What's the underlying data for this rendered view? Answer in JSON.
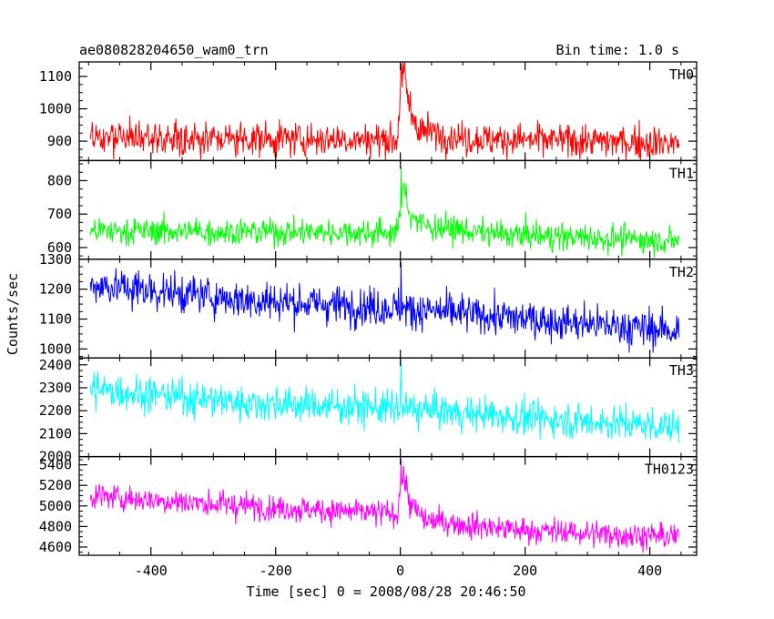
{
  "header": {
    "title": "ae080828204650_wam0_trn",
    "bin_time": "Bin time: 1.0 s"
  },
  "chart_data": {
    "type": "line",
    "title": "ae080828204650_wam0_trn",
    "xlabel": "Time [sec] 0 = 2008/08/28 20:46:50",
    "ylabel": "Counts/sec",
    "xlim": [
      -515,
      475
    ],
    "x_ticks": [
      -400,
      -200,
      0,
      200,
      400
    ],
    "x_start": -497,
    "x_end": 447,
    "bin_sec": 1.0,
    "grid": false,
    "series": [
      {
        "name": "TH0",
        "color": "#ff0000",
        "ylim": [
          840,
          1145
        ],
        "yticks": [
          900,
          1000,
          1100
        ],
        "trend": [
          [
            -497,
            910
          ],
          [
            -5,
            905
          ],
          [
            0,
            1060
          ],
          [
            6,
            1110
          ],
          [
            15,
            1000
          ],
          [
            30,
            935
          ],
          [
            100,
            908
          ],
          [
            447,
            895
          ]
        ],
        "noise": 45,
        "peak_max": 1140
      },
      {
        "name": "TH1",
        "color": "#00ff00",
        "ylim": [
          565,
          860
        ],
        "yticks": [
          600,
          700,
          800
        ],
        "trend": [
          [
            -497,
            650
          ],
          [
            -5,
            645
          ],
          [
            3,
            740
          ],
          [
            6,
            790
          ],
          [
            15,
            700
          ],
          [
            40,
            665
          ],
          [
            150,
            640
          ],
          [
            447,
            620
          ]
        ],
        "noise": 35,
        "peak_max": 840
      },
      {
        "name": "TH2",
        "color": "#0000ff",
        "ylim": [
          970,
          1300
        ],
        "yticks": [
          1000,
          1100,
          1200,
          1300
        ],
        "trend": [
          [
            -497,
            1215
          ],
          [
            -250,
            1165
          ],
          [
            0,
            1135
          ],
          [
            200,
            1100
          ],
          [
            447,
            1060
          ]
        ],
        "noise": 55,
        "peak_max": 1290
      },
      {
        "name": "TH3",
        "color": "#00ffff",
        "ylim": [
          2000,
          2430
        ],
        "yticks": [
          2000,
          2100,
          2200,
          2300,
          2400
        ],
        "trend": [
          [
            -497,
            2295
          ],
          [
            -250,
            2235
          ],
          [
            0,
            2210
          ],
          [
            200,
            2170
          ],
          [
            447,
            2130
          ]
        ],
        "noise": 65,
        "peak_max": 2425
      },
      {
        "name": "TH0123",
        "color": "#ff00ff",
        "ylim": [
          4520,
          5480
        ],
        "yticks": [
          4600,
          4800,
          5000,
          5200,
          5400
        ],
        "trend": [
          [
            -497,
            5100
          ],
          [
            -250,
            5000
          ],
          [
            -5,
            4920
          ],
          [
            0,
            5200
          ],
          [
            6,
            5300
          ],
          [
            15,
            5020
          ],
          [
            40,
            4860
          ],
          [
            200,
            4760
          ],
          [
            447,
            4700
          ]
        ],
        "noise": 110,
        "peak_max": 5460
      }
    ]
  }
}
